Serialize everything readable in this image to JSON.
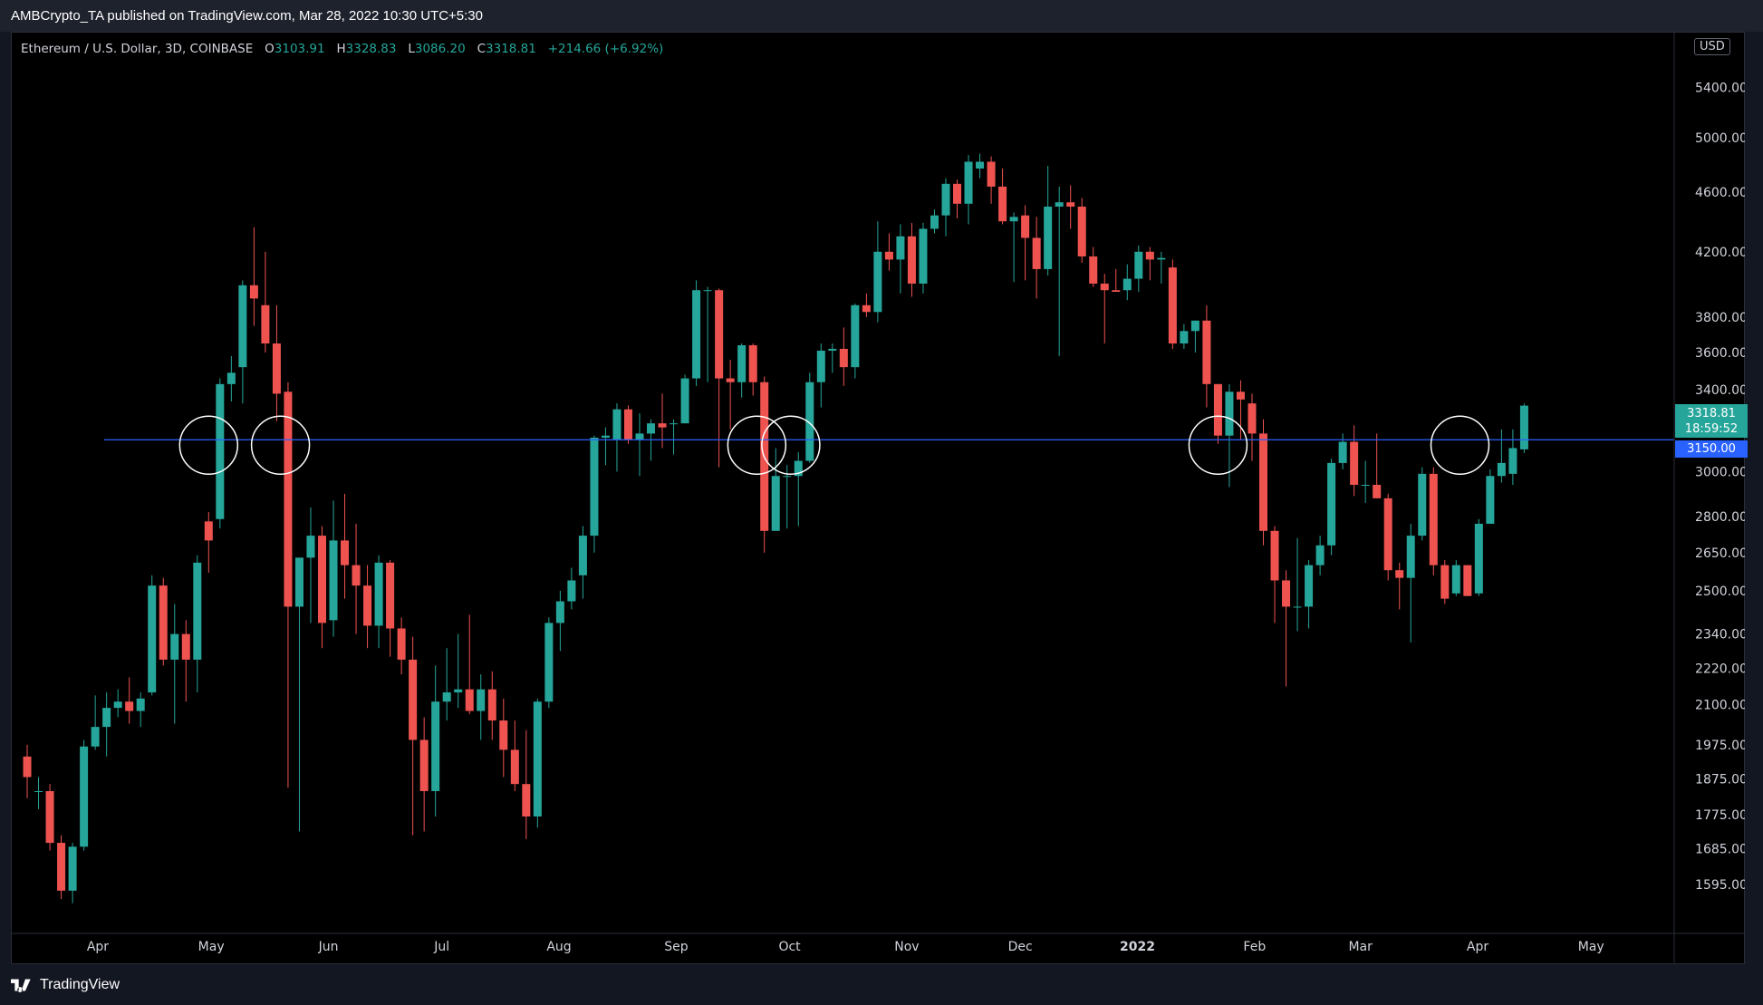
{
  "header": {
    "publisher": "AMBCrypto_TA published on TradingView.com, Mar 28, 2022 10:30 UTC+5:30"
  },
  "legend": {
    "symbol": "Ethereum / U.S. Dollar, 3D, COINBASE",
    "o_label": "O",
    "o_value": "3103.91",
    "h_label": "H",
    "h_value": "3328.83",
    "l_label": "L",
    "l_value": "3086.20",
    "c_label": "C",
    "c_value": "3318.81",
    "change": "+214.66 (+6.92%)"
  },
  "currency": "USD",
  "last_price": {
    "price": "3318.81",
    "countdown": "18:59:52"
  },
  "level_label": "3150.00",
  "footer": {
    "brand": "TradingView"
  },
  "colors": {
    "up": "#26a69a",
    "down": "#ef5350",
    "level_line": "#2962ff",
    "background": "#000000",
    "axis_text": "#d1d4dc"
  },
  "chart_data": {
    "type": "candlestick",
    "scale": "log",
    "interval": "3D",
    "ylim": [
      1480,
      5800
    ],
    "y_ticks": [
      "5400.00",
      "5000.00",
      "4600.00",
      "4200.00",
      "3800.00",
      "3600.00",
      "3400.00",
      "3000.00",
      "2800.00",
      "2650.00",
      "2500.00",
      "2340.00",
      "2220.00",
      "2100.00",
      "1975.00",
      "1875.00",
      "1775.00",
      "1685.00",
      "1595.00"
    ],
    "x_ticks": [
      {
        "label": "Apr",
        "date": "2021-04-01"
      },
      {
        "label": "May",
        "date": "2021-05-01"
      },
      {
        "label": "Jun",
        "date": "2021-06-01"
      },
      {
        "label": "Jul",
        "date": "2021-07-01"
      },
      {
        "label": "Aug",
        "date": "2021-08-01"
      },
      {
        "label": "Sep",
        "date": "2021-09-01"
      },
      {
        "label": "Oct",
        "date": "2021-10-01"
      },
      {
        "label": "Nov",
        "date": "2021-11-01"
      },
      {
        "label": "Dec",
        "date": "2021-12-01"
      },
      {
        "label": "2022",
        "date": "2022-01-01"
      },
      {
        "label": "Feb",
        "date": "2022-02-01"
      },
      {
        "label": "Mar",
        "date": "2022-03-01"
      },
      {
        "label": "Apr",
        "date": "2022-04-01"
      },
      {
        "label": "May",
        "date": "2022-05-01"
      }
    ],
    "horizontal_level": 3150,
    "circled_dates": [
      "2021-04-29",
      "2021-05-18",
      "2021-09-21",
      "2021-09-30",
      "2022-01-21",
      "2022-03-26"
    ],
    "candles": [
      {
        "date": "2021-03-12",
        "o": 1940,
        "h": 1975,
        "l": 1820,
        "c": 1880
      },
      {
        "date": "2021-03-15",
        "o": 1840,
        "h": 1880,
        "l": 1790,
        "c": 1840
      },
      {
        "date": "2021-03-18",
        "o": 1840,
        "h": 1860,
        "l": 1680,
        "c": 1700
      },
      {
        "date": "2021-03-21",
        "o": 1700,
        "h": 1720,
        "l": 1560,
        "c": 1580
      },
      {
        "date": "2021-03-24",
        "o": 1580,
        "h": 1700,
        "l": 1550,
        "c": 1690
      },
      {
        "date": "2021-03-27",
        "o": 1690,
        "h": 1990,
        "l": 1680,
        "c": 1970
      },
      {
        "date": "2021-03-30",
        "o": 1970,
        "h": 2130,
        "l": 1960,
        "c": 2030
      },
      {
        "date": "2021-04-02",
        "o": 2030,
        "h": 2140,
        "l": 1940,
        "c": 2090
      },
      {
        "date": "2021-04-05",
        "o": 2090,
        "h": 2150,
        "l": 2060,
        "c": 2110
      },
      {
        "date": "2021-04-08",
        "o": 2110,
        "h": 2190,
        "l": 2040,
        "c": 2080
      },
      {
        "date": "2021-04-11",
        "o": 2080,
        "h": 2140,
        "l": 2030,
        "c": 2120
      },
      {
        "date": "2021-04-14",
        "o": 2140,
        "h": 2560,
        "l": 2130,
        "c": 2520
      },
      {
        "date": "2021-04-17",
        "o": 2520,
        "h": 2550,
        "l": 2230,
        "c": 2250
      },
      {
        "date": "2021-04-20",
        "o": 2250,
        "h": 2450,
        "l": 2040,
        "c": 2340
      },
      {
        "date": "2021-04-23",
        "o": 2340,
        "h": 2390,
        "l": 2110,
        "c": 2250
      },
      {
        "date": "2021-04-26",
        "o": 2250,
        "h": 2640,
        "l": 2140,
        "c": 2610
      },
      {
        "date": "2021-04-29",
        "o": 2780,
        "h": 2820,
        "l": 2570,
        "c": 2700
      },
      {
        "date": "2021-05-02",
        "o": 2790,
        "h": 3460,
        "l": 2750,
        "c": 3430
      },
      {
        "date": "2021-05-05",
        "o": 3430,
        "h": 3580,
        "l": 3340,
        "c": 3490
      },
      {
        "date": "2021-05-08",
        "o": 3520,
        "h": 4020,
        "l": 3330,
        "c": 3990
      },
      {
        "date": "2021-05-11",
        "o": 3990,
        "h": 4360,
        "l": 3750,
        "c": 3910
      },
      {
        "date": "2021-05-14",
        "o": 3870,
        "h": 4200,
        "l": 3600,
        "c": 3650
      },
      {
        "date": "2021-05-17",
        "o": 3650,
        "h": 3870,
        "l": 3240,
        "c": 3380
      },
      {
        "date": "2021-05-20",
        "o": 3390,
        "h": 3440,
        "l": 1850,
        "c": 2440
      },
      {
        "date": "2021-05-23",
        "o": 2440,
        "h": 2630,
        "l": 1730,
        "c": 2630
      },
      {
        "date": "2021-05-26",
        "o": 2630,
        "h": 2840,
        "l": 2380,
        "c": 2720
      },
      {
        "date": "2021-05-29",
        "o": 2720,
        "h": 2760,
        "l": 2290,
        "c": 2380
      },
      {
        "date": "2021-06-01",
        "o": 2390,
        "h": 2870,
        "l": 2330,
        "c": 2700
      },
      {
        "date": "2021-06-04",
        "o": 2700,
        "h": 2900,
        "l": 2470,
        "c": 2600
      },
      {
        "date": "2021-06-07",
        "o": 2600,
        "h": 2770,
        "l": 2340,
        "c": 2520
      },
      {
        "date": "2021-06-10",
        "o": 2520,
        "h": 2600,
        "l": 2290,
        "c": 2370
      },
      {
        "date": "2021-06-13",
        "o": 2370,
        "h": 2640,
        "l": 2290,
        "c": 2610
      },
      {
        "date": "2021-06-16",
        "o": 2610,
        "h": 2620,
        "l": 2260,
        "c": 2360
      },
      {
        "date": "2021-06-19",
        "o": 2360,
        "h": 2400,
        "l": 2200,
        "c": 2250
      },
      {
        "date": "2021-06-22",
        "o": 2250,
        "h": 2330,
        "l": 1720,
        "c": 1990
      },
      {
        "date": "2021-06-25",
        "o": 1990,
        "h": 2060,
        "l": 1730,
        "c": 1840
      },
      {
        "date": "2021-06-28",
        "o": 1840,
        "h": 2230,
        "l": 1770,
        "c": 2110
      },
      {
        "date": "2021-07-01",
        "o": 2110,
        "h": 2290,
        "l": 2050,
        "c": 2140
      },
      {
        "date": "2021-07-04",
        "o": 2140,
        "h": 2340,
        "l": 2090,
        "c": 2150
      },
      {
        "date": "2021-07-07",
        "o": 2150,
        "h": 2410,
        "l": 2070,
        "c": 2080
      },
      {
        "date": "2021-07-10",
        "o": 2080,
        "h": 2200,
        "l": 1990,
        "c": 2150
      },
      {
        "date": "2021-07-13",
        "o": 2150,
        "h": 2210,
        "l": 1990,
        "c": 2050
      },
      {
        "date": "2021-07-16",
        "o": 2050,
        "h": 2120,
        "l": 1880,
        "c": 1960
      },
      {
        "date": "2021-07-19",
        "o": 1960,
        "h": 2050,
        "l": 1840,
        "c": 1860
      },
      {
        "date": "2021-07-22",
        "o": 1860,
        "h": 2020,
        "l": 1710,
        "c": 1770
      },
      {
        "date": "2021-07-25",
        "o": 1770,
        "h": 2120,
        "l": 1740,
        "c": 2110
      },
      {
        "date": "2021-07-28",
        "o": 2110,
        "h": 2400,
        "l": 2090,
        "c": 2380
      },
      {
        "date": "2021-07-31",
        "o": 2380,
        "h": 2500,
        "l": 2280,
        "c": 2460
      },
      {
        "date": "2021-08-03",
        "o": 2460,
        "h": 2590,
        "l": 2430,
        "c": 2540
      },
      {
        "date": "2021-08-06",
        "o": 2560,
        "h": 2760,
        "l": 2470,
        "c": 2720
      },
      {
        "date": "2021-08-09",
        "o": 2720,
        "h": 3170,
        "l": 2650,
        "c": 3160
      },
      {
        "date": "2021-08-12",
        "o": 3160,
        "h": 3210,
        "l": 3030,
        "c": 3170
      },
      {
        "date": "2021-08-15",
        "o": 3150,
        "h": 3330,
        "l": 3000,
        "c": 3300
      },
      {
        "date": "2021-08-18",
        "o": 3300,
        "h": 3320,
        "l": 3130,
        "c": 3150
      },
      {
        "date": "2021-08-21",
        "o": 3150,
        "h": 3280,
        "l": 2980,
        "c": 3180
      },
      {
        "date": "2021-08-24",
        "o": 3180,
        "h": 3250,
        "l": 3050,
        "c": 3230
      },
      {
        "date": "2021-08-27",
        "o": 3230,
        "h": 3380,
        "l": 3110,
        "c": 3210
      },
      {
        "date": "2021-08-30",
        "o": 3230,
        "h": 3250,
        "l": 3080,
        "c": 3230
      },
      {
        "date": "2021-09-02",
        "o": 3230,
        "h": 3480,
        "l": 3230,
        "c": 3460
      },
      {
        "date": "2021-09-05",
        "o": 3460,
        "h": 4020,
        "l": 3420,
        "c": 3960
      },
      {
        "date": "2021-09-08",
        "o": 3960,
        "h": 3980,
        "l": 3440,
        "c": 3960
      },
      {
        "date": "2021-09-11",
        "o": 3960,
        "h": 3970,
        "l": 3020,
        "c": 3460
      },
      {
        "date": "2021-09-14",
        "o": 3460,
        "h": 3560,
        "l": 3200,
        "c": 3440
      },
      {
        "date": "2021-09-17",
        "o": 3440,
        "h": 3650,
        "l": 3360,
        "c": 3640
      },
      {
        "date": "2021-09-20",
        "o": 3640,
        "h": 3650,
        "l": 3370,
        "c": 3440
      },
      {
        "date": "2021-09-23",
        "o": 3440,
        "h": 3470,
        "l": 2650,
        "c": 2740
      },
      {
        "date": "2021-09-26",
        "o": 2740,
        "h": 3110,
        "l": 2740,
        "c": 2980
      },
      {
        "date": "2021-09-29",
        "o": 2980,
        "h": 3030,
        "l": 2750,
        "c": 2980
      },
      {
        "date": "2021-10-02",
        "o": 2980,
        "h": 3090,
        "l": 2760,
        "c": 3050
      },
      {
        "date": "2021-10-05",
        "o": 3050,
        "h": 3490,
        "l": 3040,
        "c": 3440
      },
      {
        "date": "2021-10-08",
        "o": 3440,
        "h": 3650,
        "l": 3310,
        "c": 3610
      },
      {
        "date": "2021-10-11",
        "o": 3610,
        "h": 3650,
        "l": 3490,
        "c": 3620
      },
      {
        "date": "2021-10-14",
        "o": 3620,
        "h": 3740,
        "l": 3420,
        "c": 3520
      },
      {
        "date": "2021-10-17",
        "o": 3520,
        "h": 3880,
        "l": 3460,
        "c": 3870
      },
      {
        "date": "2021-10-20",
        "o": 3870,
        "h": 3940,
        "l": 3800,
        "c": 3830
      },
      {
        "date": "2021-10-23",
        "o": 3830,
        "h": 4400,
        "l": 3770,
        "c": 4200
      },
      {
        "date": "2021-10-26",
        "o": 4200,
        "h": 4320,
        "l": 4080,
        "c": 4150
      },
      {
        "date": "2021-10-29",
        "o": 4150,
        "h": 4380,
        "l": 3940,
        "c": 4300
      },
      {
        "date": "2021-11-01",
        "o": 4300,
        "h": 4390,
        "l": 3920,
        "c": 4000
      },
      {
        "date": "2021-11-04",
        "o": 4000,
        "h": 4390,
        "l": 3940,
        "c": 4350
      },
      {
        "date": "2021-11-07",
        "o": 4350,
        "h": 4480,
        "l": 4320,
        "c": 4440
      },
      {
        "date": "2021-11-10",
        "o": 4440,
        "h": 4700,
        "l": 4300,
        "c": 4660
      },
      {
        "date": "2021-11-13",
        "o": 4660,
        "h": 4690,
        "l": 4420,
        "c": 4520
      },
      {
        "date": "2021-11-16",
        "o": 4520,
        "h": 4870,
        "l": 4380,
        "c": 4820
      },
      {
        "date": "2021-11-19",
        "o": 4770,
        "h": 4880,
        "l": 4700,
        "c": 4820
      },
      {
        "date": "2021-11-22",
        "o": 4820,
        "h": 4860,
        "l": 4520,
        "c": 4640
      },
      {
        "date": "2021-11-25",
        "o": 4640,
        "h": 4770,
        "l": 4380,
        "c": 4400
      },
      {
        "date": "2021-11-28",
        "o": 4400,
        "h": 4460,
        "l": 4010,
        "c": 4430
      },
      {
        "date": "2021-12-01",
        "o": 4440,
        "h": 4510,
        "l": 4020,
        "c": 4290
      },
      {
        "date": "2021-12-04",
        "o": 4290,
        "h": 4430,
        "l": 3910,
        "c": 4090
      },
      {
        "date": "2021-12-07",
        "o": 4090,
        "h": 4790,
        "l": 4050,
        "c": 4500
      },
      {
        "date": "2021-12-10",
        "o": 4500,
        "h": 4640,
        "l": 3580,
        "c": 4530
      },
      {
        "date": "2021-12-13",
        "o": 4530,
        "h": 4650,
        "l": 4350,
        "c": 4500
      },
      {
        "date": "2021-12-16",
        "o": 4500,
        "h": 4560,
        "l": 4130,
        "c": 4170
      },
      {
        "date": "2021-12-19",
        "o": 4170,
        "h": 4230,
        "l": 3980,
        "c": 4000
      },
      {
        "date": "2021-12-22",
        "o": 4000,
        "h": 4060,
        "l": 3650,
        "c": 3960
      },
      {
        "date": "2021-12-25",
        "o": 3960,
        "h": 4090,
        "l": 3950,
        "c": 3950
      },
      {
        "date": "2021-12-28",
        "o": 3960,
        "h": 4120,
        "l": 3900,
        "c": 4030
      },
      {
        "date": "2021-12-31",
        "o": 4030,
        "h": 4240,
        "l": 3950,
        "c": 4200
      },
      {
        "date": "2022-01-03",
        "o": 4200,
        "h": 4230,
        "l": 4020,
        "c": 4150
      },
      {
        "date": "2022-01-06",
        "o": 4150,
        "h": 4200,
        "l": 4000,
        "c": 4160
      },
      {
        "date": "2022-01-09",
        "o": 4100,
        "h": 4150,
        "l": 3620,
        "c": 3650
      },
      {
        "date": "2022-01-12",
        "o": 3650,
        "h": 3760,
        "l": 3620,
        "c": 3720
      },
      {
        "date": "2022-01-15",
        "o": 3720,
        "h": 3780,
        "l": 3600,
        "c": 3780
      },
      {
        "date": "2022-01-18",
        "o": 3780,
        "h": 3870,
        "l": 3310,
        "c": 3430
      },
      {
        "date": "2022-01-21",
        "o": 3430,
        "h": 3430,
        "l": 3130,
        "c": 3170
      },
      {
        "date": "2022-01-24",
        "o": 3170,
        "h": 3430,
        "l": 2930,
        "c": 3390
      },
      {
        "date": "2022-01-27",
        "o": 3390,
        "h": 3450,
        "l": 3150,
        "c": 3350
      },
      {
        "date": "2022-01-30",
        "o": 3330,
        "h": 3380,
        "l": 3050,
        "c": 3180
      },
      {
        "date": "2022-02-02",
        "o": 3180,
        "h": 3250,
        "l": 2680,
        "c": 2740
      },
      {
        "date": "2022-02-05",
        "o": 2740,
        "h": 2760,
        "l": 2380,
        "c": 2540
      },
      {
        "date": "2022-02-08",
        "o": 2540,
        "h": 2580,
        "l": 2160,
        "c": 2440
      },
      {
        "date": "2022-02-11",
        "o": 2440,
        "h": 2710,
        "l": 2350,
        "c": 2440
      },
      {
        "date": "2022-02-14",
        "o": 2440,
        "h": 2620,
        "l": 2360,
        "c": 2600
      },
      {
        "date": "2022-02-17",
        "o": 2600,
        "h": 2720,
        "l": 2560,
        "c": 2680
      },
      {
        "date": "2022-02-20",
        "o": 2680,
        "h": 3060,
        "l": 2640,
        "c": 3040
      },
      {
        "date": "2022-02-23",
        "o": 3040,
        "h": 3180,
        "l": 3010,
        "c": 3140
      },
      {
        "date": "2022-02-26",
        "o": 3140,
        "h": 3220,
        "l": 2890,
        "c": 2940
      },
      {
        "date": "2022-03-01",
        "o": 2940,
        "h": 3050,
        "l": 2860,
        "c": 2940
      },
      {
        "date": "2022-03-04",
        "o": 2940,
        "h": 3180,
        "l": 2910,
        "c": 2880
      },
      {
        "date": "2022-03-07",
        "o": 2880,
        "h": 2900,
        "l": 2540,
        "c": 2580
      },
      {
        "date": "2022-03-10",
        "o": 2580,
        "h": 2610,
        "l": 2430,
        "c": 2550
      },
      {
        "date": "2022-03-13",
        "o": 2550,
        "h": 2770,
        "l": 2310,
        "c": 2720
      },
      {
        "date": "2022-03-16",
        "o": 2720,
        "h": 3020,
        "l": 2700,
        "c": 2990
      },
      {
        "date": "2022-03-19",
        "o": 2990,
        "h": 3020,
        "l": 2560,
        "c": 2600
      },
      {
        "date": "2022-03-22",
        "o": 2600,
        "h": 2620,
        "l": 2450,
        "c": 2470
      },
      {
        "date": "2022-03-25",
        "o": 2490,
        "h": 2620,
        "l": 2480,
        "c": 2600
      },
      {
        "date": "2022-03-28",
        "o": 2600,
        "h": 2600,
        "l": 2480,
        "c": 2480
      },
      {
        "date": "2022-03-31",
        "o": 2490,
        "h": 2790,
        "l": 2480,
        "c": 2770
      },
      {
        "date": "2022-04-03",
        "o": 2770,
        "h": 3010,
        "l": 2770,
        "c": 2980
      },
      {
        "date": "2022-04-06",
        "o": 2980,
        "h": 3200,
        "l": 2950,
        "c": 3040
      },
      {
        "date": "2022-04-09",
        "o": 2990,
        "h": 3200,
        "l": 2940,
        "c": 3110
      },
      {
        "date": "2022-04-12",
        "o": 3103.91,
        "h": 3328.83,
        "l": 3086.2,
        "c": 3318.81
      }
    ]
  }
}
